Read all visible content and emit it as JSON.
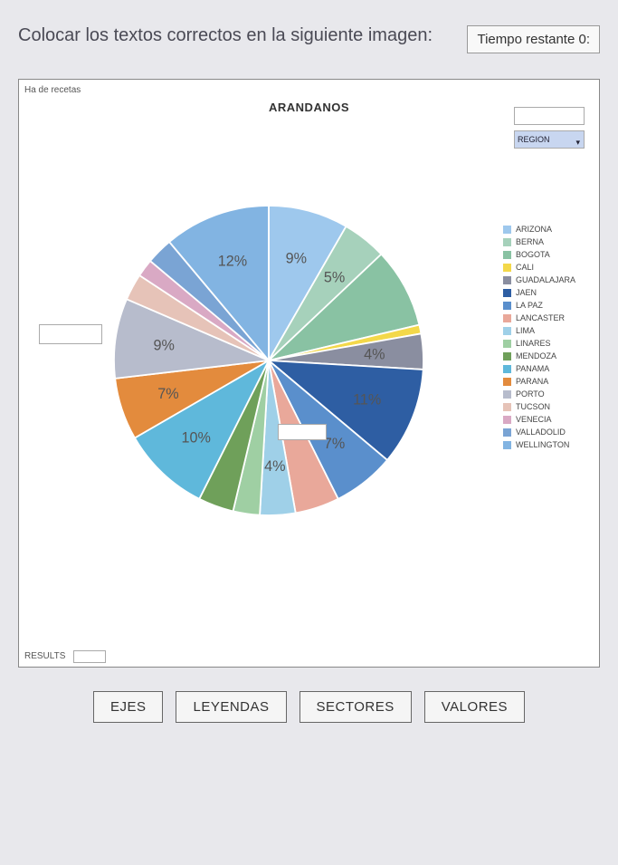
{
  "instruction": "Colocar los textos correctos en la siguiente imagen:",
  "timer_label": "Tiempo restante 0:",
  "panel": {
    "top_label": "Ha de recetas",
    "bottom_label": "RESULTS",
    "chart_title": "ARANDANOS",
    "dropdown2_text": "REGION"
  },
  "chart": {
    "type": "pie",
    "background_color": "#ffffff",
    "slice_label_fontsize": 9,
    "slices": [
      {
        "label": "ARIZONA",
        "value": 9,
        "color": "#9ec8ed",
        "text": "9%"
      },
      {
        "label": "BERNA",
        "value": 5,
        "color": "#a6d1bb",
        "text": "5%"
      },
      {
        "label": "BOGOTA",
        "value": 9,
        "color": "#89c2a3",
        "text": ""
      },
      {
        "label": "CALI",
        "value": 1,
        "color": "#f3d84a",
        "text": ""
      },
      {
        "label": "GUADALAJARA",
        "value": 4,
        "color": "#8a8ea0",
        "text": "4%"
      },
      {
        "label": "JAEN",
        "value": 11,
        "color": "#2e5ea3",
        "text": "11%"
      },
      {
        "label": "LA PAZ",
        "value": 7,
        "color": "#5a8fcc",
        "text": "7%"
      },
      {
        "label": "LANCASTER",
        "value": 5,
        "color": "#e9a89a",
        "text": ""
      },
      {
        "label": "LIMA",
        "value": 4,
        "color": "#9fd0e8",
        "text": "4%"
      },
      {
        "label": "LINARES",
        "value": 3,
        "color": "#9fcfa3",
        "text": ""
      },
      {
        "label": "MENDOZA",
        "value": 4,
        "color": "#6fa05a",
        "text": ""
      },
      {
        "label": "PANAMA",
        "value": 10,
        "color": "#5fb8db",
        "text": "10%"
      },
      {
        "label": "PARANA",
        "value": 7,
        "color": "#e38b3d",
        "text": "7%"
      },
      {
        "label": "PORTO",
        "value": 9,
        "color": "#b7bccc",
        "text": "9%"
      },
      {
        "label": "TUCSON",
        "value": 3,
        "color": "#e6c3b8",
        "text": ""
      },
      {
        "label": "VENECIA",
        "value": 2,
        "color": "#d9a9c4",
        "text": ""
      },
      {
        "label": "VALLADOLID",
        "value": 3,
        "color": "#7aa4d4",
        "text": ""
      },
      {
        "label": "WELLINGTON",
        "value": 12,
        "color": "#82b4e2",
        "text": "12%"
      }
    ]
  },
  "legend_colors_from_slices": true,
  "answers": [
    "EJES",
    "LEYENDAS",
    "SECTORES",
    "VALORES"
  ],
  "drop_targets": {
    "left_box": "",
    "inner_box": ""
  }
}
